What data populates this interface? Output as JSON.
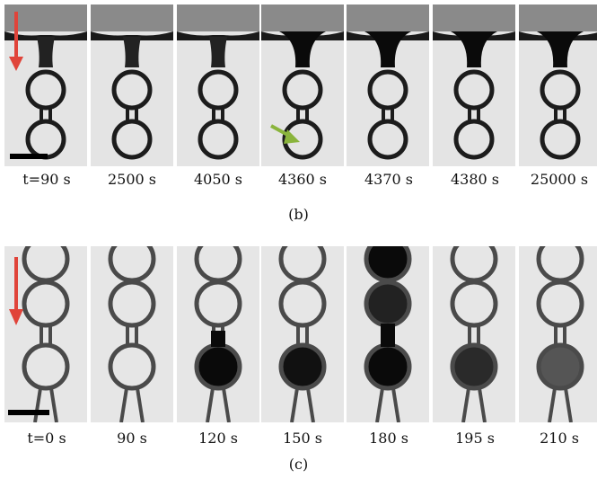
{
  "figure": {
    "panels": [
      {
        "label": "(b)",
        "times": [
          "t=90 s",
          "2500 s",
          "4050 s",
          "4360 s",
          "4370 s",
          "4380 s",
          "25000 s"
        ]
      },
      {
        "label": "(c)",
        "times": [
          "t=0 s",
          "90 s",
          "120 s",
          "150 s",
          "180 s",
          "195 s",
          "210 s"
        ]
      }
    ],
    "colors": {
      "flow_arrow": "#e0443a",
      "marker_arrow": "#8ab43c",
      "scale_bar": "#000000"
    }
  }
}
